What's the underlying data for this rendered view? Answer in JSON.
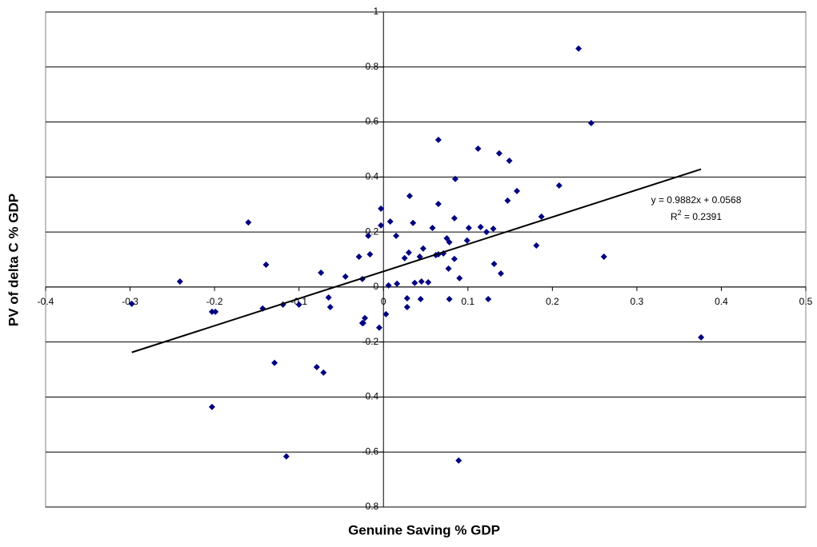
{
  "chart_data": {
    "type": "scatter",
    "x_label": "Genuine Saving % GDP",
    "y_label": "PV of delta C % GDP",
    "color": "#000080",
    "x": [
      0.231,
      0.246,
      0.065,
      0.112,
      0.137,
      0.149,
      0.085,
      0.208,
      0.158,
      0.031,
      0.147,
      -0.003,
      0.065,
      0.084,
      0.187,
      -0.16,
      0.008,
      -0.003,
      0.035,
      0.058,
      0.101,
      0.115,
      0.122,
      0.13,
      -0.018,
      0.015,
      -0.016,
      -0.029,
      0.047,
      0.03,
      0.025,
      0.043,
      0.062,
      0.075,
      0.078,
      0.065,
      0.071,
      0.077,
      0.084,
      0.099,
      0.181,
      0.261,
      0.131,
      0.139,
      -0.139,
      -0.074,
      -0.045,
      -0.025,
      -0.241,
      0.006,
      0.016,
      0.037,
      0.045,
      0.053,
      0.09,
      -0.065,
      -0.063,
      -0.119,
      -0.1,
      -0.143,
      -0.203,
      -0.199,
      -0.298,
      0.028,
      0.044,
      0.078,
      0.124,
      0.028,
      -0.022,
      -0.024,
      -0.025,
      0.003,
      -0.005,
      0.376,
      -0.129,
      -0.079,
      -0.071,
      -0.203,
      -0.115,
      0.089
    ],
    "values": [
      0.867,
      0.596,
      0.535,
      0.503,
      0.486,
      0.459,
      0.393,
      0.369,
      0.349,
      0.331,
      0.314,
      0.285,
      0.302,
      0.25,
      0.256,
      0.235,
      0.238,
      0.224,
      0.233,
      0.215,
      0.215,
      0.218,
      0.2,
      0.212,
      0.186,
      0.186,
      0.119,
      0.11,
      0.14,
      0.125,
      0.105,
      0.11,
      0.116,
      0.177,
      0.163,
      0.119,
      0.122,
      0.067,
      0.102,
      0.169,
      0.151,
      0.11,
      0.084,
      0.049,
      0.081,
      0.052,
      0.038,
      0.029,
      0.02,
      0.006,
      0.012,
      0.015,
      0.02,
      0.017,
      0.032,
      -0.038,
      -0.073,
      -0.064,
      -0.064,
      -0.078,
      -0.09,
      -0.09,
      -0.061,
      -0.041,
      -0.044,
      -0.044,
      -0.044,
      -0.073,
      -0.113,
      -0.131,
      -0.131,
      -0.099,
      -0.148,
      -0.183,
      -0.276,
      -0.291,
      -0.311,
      -0.436,
      -0.616,
      -0.631
    ],
    "trendline": {
      "slope": 0.9882,
      "intercept": 0.0568,
      "equation": "y = 0.9882x + 0.0568",
      "r2_label": [
        "R",
        "2",
        " = 0.2391"
      ]
    },
    "xlim": [
      -0.4,
      0.5
    ],
    "xticks": [
      -0.4,
      -0.3,
      -0.2,
      -0.1,
      0,
      0.1,
      0.2,
      0.3,
      0.4,
      0.5
    ],
    "ylim": [
      -0.8,
      1
    ],
    "yticks": [
      -0.8,
      -0.6,
      -0.4,
      -0.2,
      0,
      0.2,
      0.4,
      0.6,
      0.8,
      1
    ],
    "grid": true
  }
}
